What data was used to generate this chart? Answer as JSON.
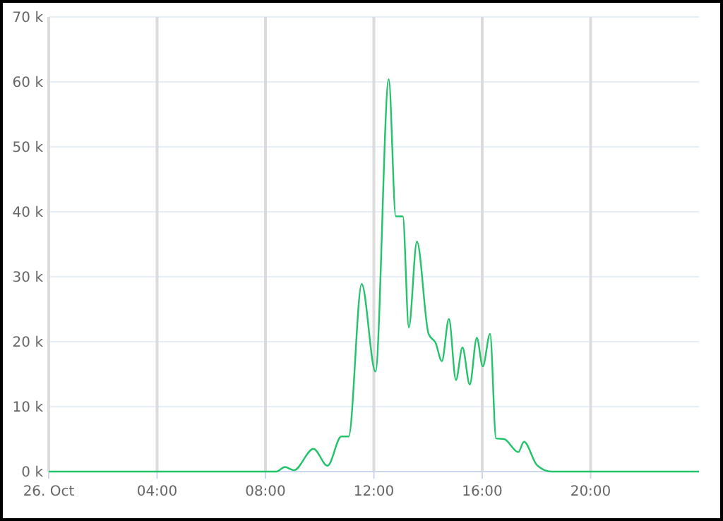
{
  "chart_data": {
    "type": "line",
    "x": [
      0,
      8.4,
      8.72,
      9.05,
      9.77,
      10.29,
      10.8,
      11.07,
      11.55,
      12.06,
      12.55,
      12.81,
      13.07,
      13.29,
      13.59,
      14.02,
      14.28,
      14.51,
      14.77,
      15.03,
      15.27,
      15.54,
      15.8,
      16.02,
      16.29,
      16.51,
      16.81,
      17.33,
      17.54,
      18.02,
      18.55,
      24
    ],
    "series": [
      {
        "color": "#22c36a",
        "values": [
          0,
          0,
          700,
          200,
          3500,
          900,
          5400,
          5400,
          28900,
          15400,
          60400,
          39300,
          39300,
          22200,
          35400,
          21200,
          19800,
          17000,
          23500,
          14100,
          19100,
          13400,
          20600,
          16200,
          21200,
          5100,
          5000,
          3000,
          4600,
          1000,
          0,
          0
        ]
      }
    ],
    "xlim": [
      0,
      24
    ],
    "xticks": [
      {
        "value": 0,
        "label": "26. Oct"
      },
      {
        "value": 4,
        "label": "04:00"
      },
      {
        "value": 8,
        "label": "08:00"
      },
      {
        "value": 12,
        "label": "12:00"
      },
      {
        "value": 16,
        "label": "16:00"
      },
      {
        "value": 20,
        "label": "20:00"
      }
    ],
    "ylim": [
      0,
      70000
    ],
    "yticks": [
      {
        "value": 0,
        "label": "0 k"
      },
      {
        "value": 10000,
        "label": "10 k"
      },
      {
        "value": 20000,
        "label": "20 k"
      },
      {
        "value": 30000,
        "label": "30 k"
      },
      {
        "value": 40000,
        "label": "40 k"
      },
      {
        "value": 50000,
        "label": "50 k"
      },
      {
        "value": 60000,
        "label": "60 k"
      },
      {
        "value": 70000,
        "label": "70 k"
      }
    ],
    "grid": true,
    "marker": "none"
  }
}
